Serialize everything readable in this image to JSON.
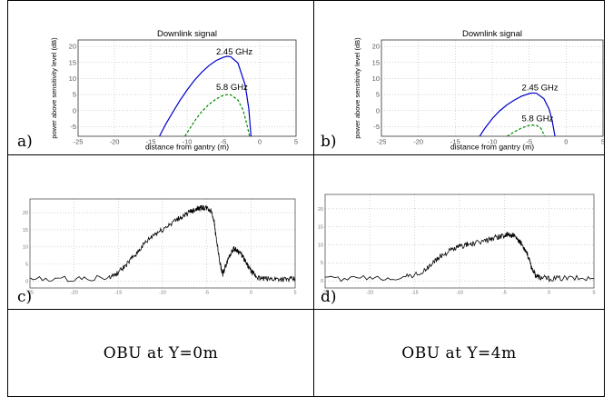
{
  "panels": [
    {
      "letter": "a)"
    },
    {
      "letter": "b)"
    },
    {
      "letter": "c)"
    },
    {
      "letter": "d)"
    }
  ],
  "captions": [
    "OBU at Y=0m",
    "OBU at Y=4m"
  ],
  "chart_data": [
    {
      "type": "line",
      "title": "Downlink signal",
      "xlabel": "distance from gantry (m)",
      "ylabel": "power above sensitivity level (dB)",
      "xlim": [
        -25,
        5
      ],
      "ylim": [
        -8,
        22
      ],
      "xticks": [
        "-25",
        "-20",
        "-15",
        "-10",
        "-5",
        "0",
        "5"
      ],
      "yticks": [
        "-5",
        "0",
        "5",
        "10",
        "15",
        "20"
      ],
      "grid": true,
      "series": [
        {
          "name": "2.45 GHz",
          "color": "#0000cc",
          "dash": "solid",
          "x": [
            -13.8,
            -13,
            -12,
            -11,
            -10,
            -9,
            -8,
            -7,
            -6,
            -5,
            -4.5,
            -4,
            -3,
            -2,
            -1.5,
            -1.2
          ],
          "y": [
            -8,
            -4.5,
            -0.6,
            3.1,
            6.4,
            9.4,
            11.9,
            14.0,
            15.6,
            16.6,
            16.9,
            16.8,
            14.8,
            8.0,
            0.5,
            -8
          ]
        },
        {
          "name": "5.8 GHz",
          "color": "#008800",
          "dash": "dashed",
          "x": [
            -10.3,
            -9.6,
            -8.8,
            -8,
            -7,
            -6,
            -5,
            -4.5,
            -4,
            -3,
            -2.3,
            -1.8,
            -1.4
          ],
          "y": [
            -8,
            -5.5,
            -2.7,
            -0.4,
            1.9,
            3.6,
            4.8,
            5.0,
            4.9,
            3.3,
            0.2,
            -4,
            -8
          ]
        }
      ],
      "annotations": [
        {
          "text": "2.45 GHz",
          "x": -6,
          "y": 17.5
        },
        {
          "text": "5.8 GHz",
          "x": -6,
          "y": 6.5
        }
      ]
    },
    {
      "type": "line",
      "title": "Downlink signal",
      "xlabel": "distance from gantry (m)",
      "ylabel": "power above sensitivity level (dB)",
      "xlim": [
        -25,
        5
      ],
      "ylim": [
        -8,
        22
      ],
      "xticks": [
        "-25",
        "-20",
        "-15",
        "-10",
        "-5",
        "0",
        "5"
      ],
      "yticks": [
        "-5",
        "0",
        "5",
        "10",
        "15",
        "20"
      ],
      "grid": true,
      "series": [
        {
          "name": "2.45 GHz",
          "color": "#0000cc",
          "dash": "solid",
          "x": [
            -11.7,
            -11,
            -10,
            -9,
            -8,
            -7,
            -6,
            -5,
            -4.5,
            -4,
            -3,
            -2.3,
            -1.9,
            -1.5
          ],
          "y": [
            -8,
            -5.5,
            -2.5,
            -0.1,
            1.8,
            3.3,
            4.5,
            5.3,
            5.5,
            5.4,
            3.7,
            0.5,
            -3,
            -8
          ]
        },
        {
          "name": "5.8 GHz",
          "color": "#008800",
          "dash": "dashed",
          "x": [
            -8.0,
            -7,
            -6,
            -5,
            -4.5,
            -4,
            -3.4,
            -2.9
          ],
          "y": [
            -8,
            -6.6,
            -5.4,
            -4.6,
            -4.5,
            -4.6,
            -5.5,
            -8
          ]
        }
      ],
      "annotations": [
        {
          "text": "2.45 GHz",
          "x": -6,
          "y": 6.3
        },
        {
          "text": "5.8 GHz",
          "x": -6,
          "y": -3.4
        }
      ]
    },
    {
      "type": "line",
      "xlim": [
        -25,
        5
      ],
      "ylim": [
        -2,
        24
      ],
      "xticks": [
        "-25",
        "-20",
        "-15",
        "-10",
        "-5",
        "0",
        "5"
      ],
      "yticks": [
        "0",
        "5",
        "10",
        "15",
        "20"
      ],
      "grid": true,
      "series": [
        {
          "name": "",
          "color": "#000000",
          "dash": "solid",
          "x": [
            -25,
            -20,
            -16,
            -15,
            -14,
            -13,
            -12,
            -11,
            -10,
            -9,
            -8,
            -7,
            -6.5,
            -6,
            -5.5,
            -5,
            -4.5,
            -4.2,
            -3.9,
            -3.5,
            -3.2,
            -3,
            -2.5,
            -2,
            -1.5,
            -1,
            -0.5,
            0,
            0.5,
            1,
            2,
            3,
            4,
            5
          ],
          "y": [
            0.5,
            0.7,
            1.0,
            2.5,
            5,
            8,
            11,
            13.5,
            15,
            17,
            18.5,
            20,
            20.8,
            21.2,
            21.4,
            21.3,
            20.5,
            18,
            12,
            5,
            2,
            3.5,
            7,
            9.5,
            9,
            7.5,
            5,
            3,
            1.5,
            0.8,
            0.6,
            0.7,
            0.5,
            0.6
          ]
        }
      ]
    },
    {
      "type": "line",
      "xlim": [
        -25,
        5
      ],
      "ylim": [
        -2,
        24
      ],
      "xticks": [
        "-25",
        "-20",
        "-15",
        "-10",
        "-5",
        "0",
        "5"
      ],
      "yticks": [
        "0",
        "5",
        "10",
        "15",
        "20"
      ],
      "grid": true,
      "series": [
        {
          "name": "",
          "color": "#000000",
          "dash": "solid",
          "x": [
            -25,
            -20,
            -16,
            -14,
            -13,
            -12,
            -11,
            -10,
            -9,
            -8,
            -7,
            -6,
            -5,
            -4.5,
            -4,
            -3.5,
            -3,
            -2.5,
            -2,
            -1.5,
            -1,
            0,
            2,
            5
          ],
          "y": [
            0.5,
            0.7,
            1.0,
            2.5,
            5,
            7,
            8.5,
            9.5,
            10.2,
            10.5,
            11.3,
            12.1,
            12.6,
            12.8,
            12.6,
            11.2,
            10,
            8,
            4,
            1.5,
            0.9,
            0.6,
            0.7,
            0.6
          ]
        }
      ]
    }
  ]
}
